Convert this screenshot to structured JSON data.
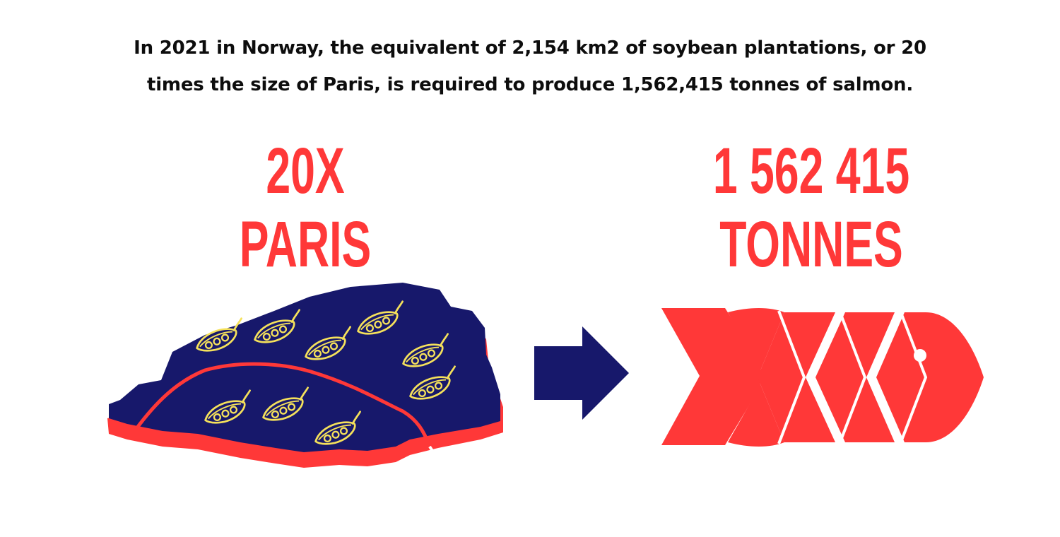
{
  "caption": {
    "line1": "In 2021 in Norway, the equivalent of 2,154 km2 of soybean plantations, or 20",
    "line2": "times the size of Paris, is required to produce 1,562,415 tonnes of salmon."
  },
  "left_stat": {
    "line1": "20X",
    "line2": "PARIS"
  },
  "right_stat": {
    "line1": "1 562 415",
    "line2": "TONNES"
  },
  "colors": {
    "red": "#ff3838",
    "navy": "#17186b",
    "yellow": "#f5e15b",
    "text": "#0d0d0d"
  },
  "icons": {
    "map": "paris-map-icon",
    "pod": "soybean-pod-icon",
    "arrow": "arrow-right-icon",
    "fish": "salmon-fillet-icon"
  }
}
